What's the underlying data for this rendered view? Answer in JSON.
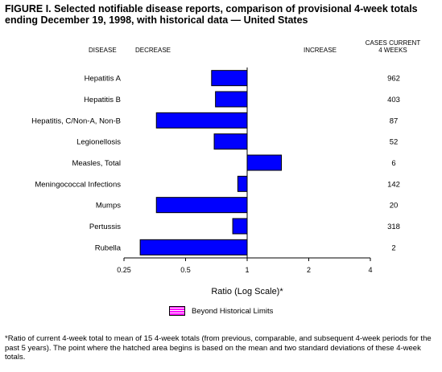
{
  "title": "FIGURE I. Selected notifiable disease reports, comparison of provisional 4-week totals ending December 19, 1998, with historical data — United States",
  "headers": {
    "disease": "DISEASE",
    "decrease": "DECREASE",
    "increase": "INCREASE",
    "cases_line1": "CASES CURRENT",
    "cases_line2": "4 WEEKS"
  },
  "legend": {
    "label": "Beyond Historical Limits",
    "color": "#ff00ff"
  },
  "footnote": "*Ratio of current 4-week total to mean of 15 4-week totals (from previous, comparable, and subsequent 4-week periods for the past 5 years). The point where the hatched area begins is based on the mean and two standard deviations of these 4-week totals.",
  "chart_data": {
    "type": "bar",
    "orientation": "horizontal",
    "xlabel": "Ratio (Log Scale)*",
    "xscale": "log",
    "xlim": [
      0.25,
      4
    ],
    "xticks": [
      0.25,
      0.5,
      1,
      2,
      4
    ],
    "xtick_labels": [
      "0.25",
      "0.5",
      "1",
      "2",
      "4"
    ],
    "baseline": 1,
    "bar_color": "#0000ff",
    "categories": [
      "Hepatitis A",
      "Hepatitis B",
      "Hepatitis, C/Non-A, Non-B",
      "Legionellosis",
      "Measles, Total",
      "Meningococcal Infections",
      "Mumps",
      "Pertussis",
      "Rubella"
    ],
    "values": [
      0.67,
      0.7,
      0.36,
      0.69,
      1.47,
      0.9,
      0.36,
      0.85,
      0.3
    ],
    "cases_current_4_weeks": [
      "962",
      "403",
      "87",
      "52",
      "6",
      "142",
      "20",
      "318",
      "2"
    ]
  }
}
